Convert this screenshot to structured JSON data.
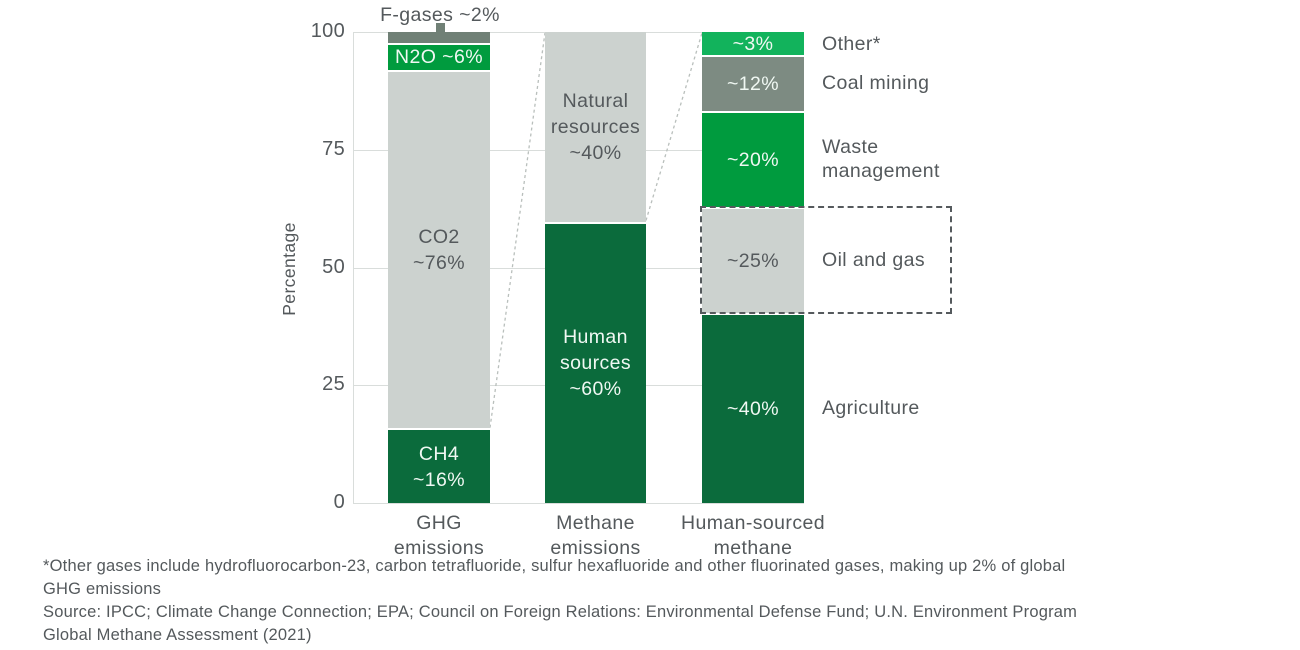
{
  "chart_data": {
    "type": "bar",
    "stacked": true,
    "title": "",
    "xlabel": "",
    "ylabel": "Percentage",
    "ylim": [
      0,
      100
    ],
    "yticks": [
      100,
      75,
      50,
      25,
      0
    ],
    "grid": true,
    "legend": "none",
    "annotation": {
      "text": "F-gases ~2%",
      "target_segment": "F-gases"
    },
    "categories": [
      "GHG emissions",
      "Methane emissions",
      "Human-sourced methane"
    ],
    "bars": [
      {
        "category": "GHG emissions",
        "x_label_lines": [
          "GHG",
          "emissions"
        ],
        "segments": [
          {
            "name": "F-gases",
            "value_pct": 2,
            "label_lines": [],
            "color": "gray_dark",
            "text": "light",
            "display_h": 2.3
          },
          {
            "name": "N2O",
            "value_pct": 6,
            "label_lines": [
              "N2O ~6%"
            ],
            "color": "green_mid",
            "text": "light",
            "display_h": 5.8
          },
          {
            "name": "CO2",
            "value_pct": 76,
            "label_lines": [
              "CO2",
              "~76%"
            ],
            "color": "gray_light",
            "text": "dark",
            "display_h": 76.0
          },
          {
            "name": "CH4",
            "value_pct": 16,
            "label_lines": [
              "CH4",
              "~16%"
            ],
            "color": "green_dark",
            "text": "light",
            "display_h": 15.9
          }
        ]
      },
      {
        "category": "Methane emissions",
        "x_label_lines": [
          "Methane",
          "emissions"
        ],
        "segments": [
          {
            "name": "Natural resources",
            "value_pct": 40,
            "label_lines": [
              "Natural",
              "resources",
              "~40%"
            ],
            "color": "gray_light",
            "text": "dark",
            "display_h": 40.3
          },
          {
            "name": "Human sources",
            "value_pct": 60,
            "label_lines": [
              "Human",
              "sources",
              "~60%"
            ],
            "color": "green_dark",
            "text": "light",
            "display_h": 59.7
          }
        ]
      },
      {
        "category": "Human-sourced methane",
        "x_label_lines": [
          "Human-sourced",
          "methane"
        ],
        "segments": [
          {
            "name": "Other",
            "value_pct": 3,
            "label_lines": [
              "~3%"
            ],
            "color": "green_bright",
            "text": "light",
            "display_h": 4.9,
            "side_label_lines": [
              "Other*"
            ]
          },
          {
            "name": "Coal mining",
            "value_pct": 12,
            "label_lines": [
              "~12%"
            ],
            "color": "gray_mid",
            "text": "light",
            "display_h": 11.9,
            "side_label_lines": [
              "Coal mining"
            ]
          },
          {
            "name": "Waste management",
            "value_pct": 20,
            "label_lines": [
              "~20%"
            ],
            "color": "green_mid",
            "text": "light",
            "display_h": 20.4,
            "side_label_lines": [
              "Waste",
              "management"
            ]
          },
          {
            "name": "Oil and gas",
            "value_pct": 25,
            "label_lines": [
              "~25%"
            ],
            "color": "gray_light",
            "text": "dark",
            "display_h": 22.5,
            "side_label_lines": [
              "Oil and gas"
            ],
            "highlight_box": true
          },
          {
            "name": "Agriculture",
            "value_pct": 40,
            "label_lines": [
              "~40%"
            ],
            "color": "green_dark",
            "text": "light",
            "display_h": 40.3,
            "side_label_lines": [
              "Agriculture"
            ]
          }
        ]
      }
    ],
    "connectors": [
      {
        "from_bar": 0,
        "from_pct": 16,
        "to_bar": 1,
        "to_pct": 100
      },
      {
        "from_bar": 1,
        "from_pct": 60,
        "to_bar": 2,
        "to_pct": 100
      }
    ]
  },
  "colors": {
    "green_dark": "#0B6B3C",
    "green_mid": "#009B3E",
    "green_bright": "#12B35C",
    "gray_dark": "#708076",
    "gray_mid": "#7D8B82",
    "gray_light": "#CCD2CF",
    "text_dark": "#54595C",
    "text_light": "#F0F8F3",
    "grid": "#D9DDDB",
    "connector": "#B9BFBC",
    "highlight_border": "#555A5D"
  },
  "footnote": {
    "lines": [
      "*Other gases include hydrofluorocarbon-23, carbon tetrafluoride, sulfur hexafluoride and other fluorinated gases, making up 2% of global",
      "GHG emissions",
      "Source: IPCC; Climate Change Connection; EPA; Council on Foreign Relations: Environmental Defense Fund; U.N. Environment Program",
      "Global Methane Assessment (2021)"
    ]
  }
}
